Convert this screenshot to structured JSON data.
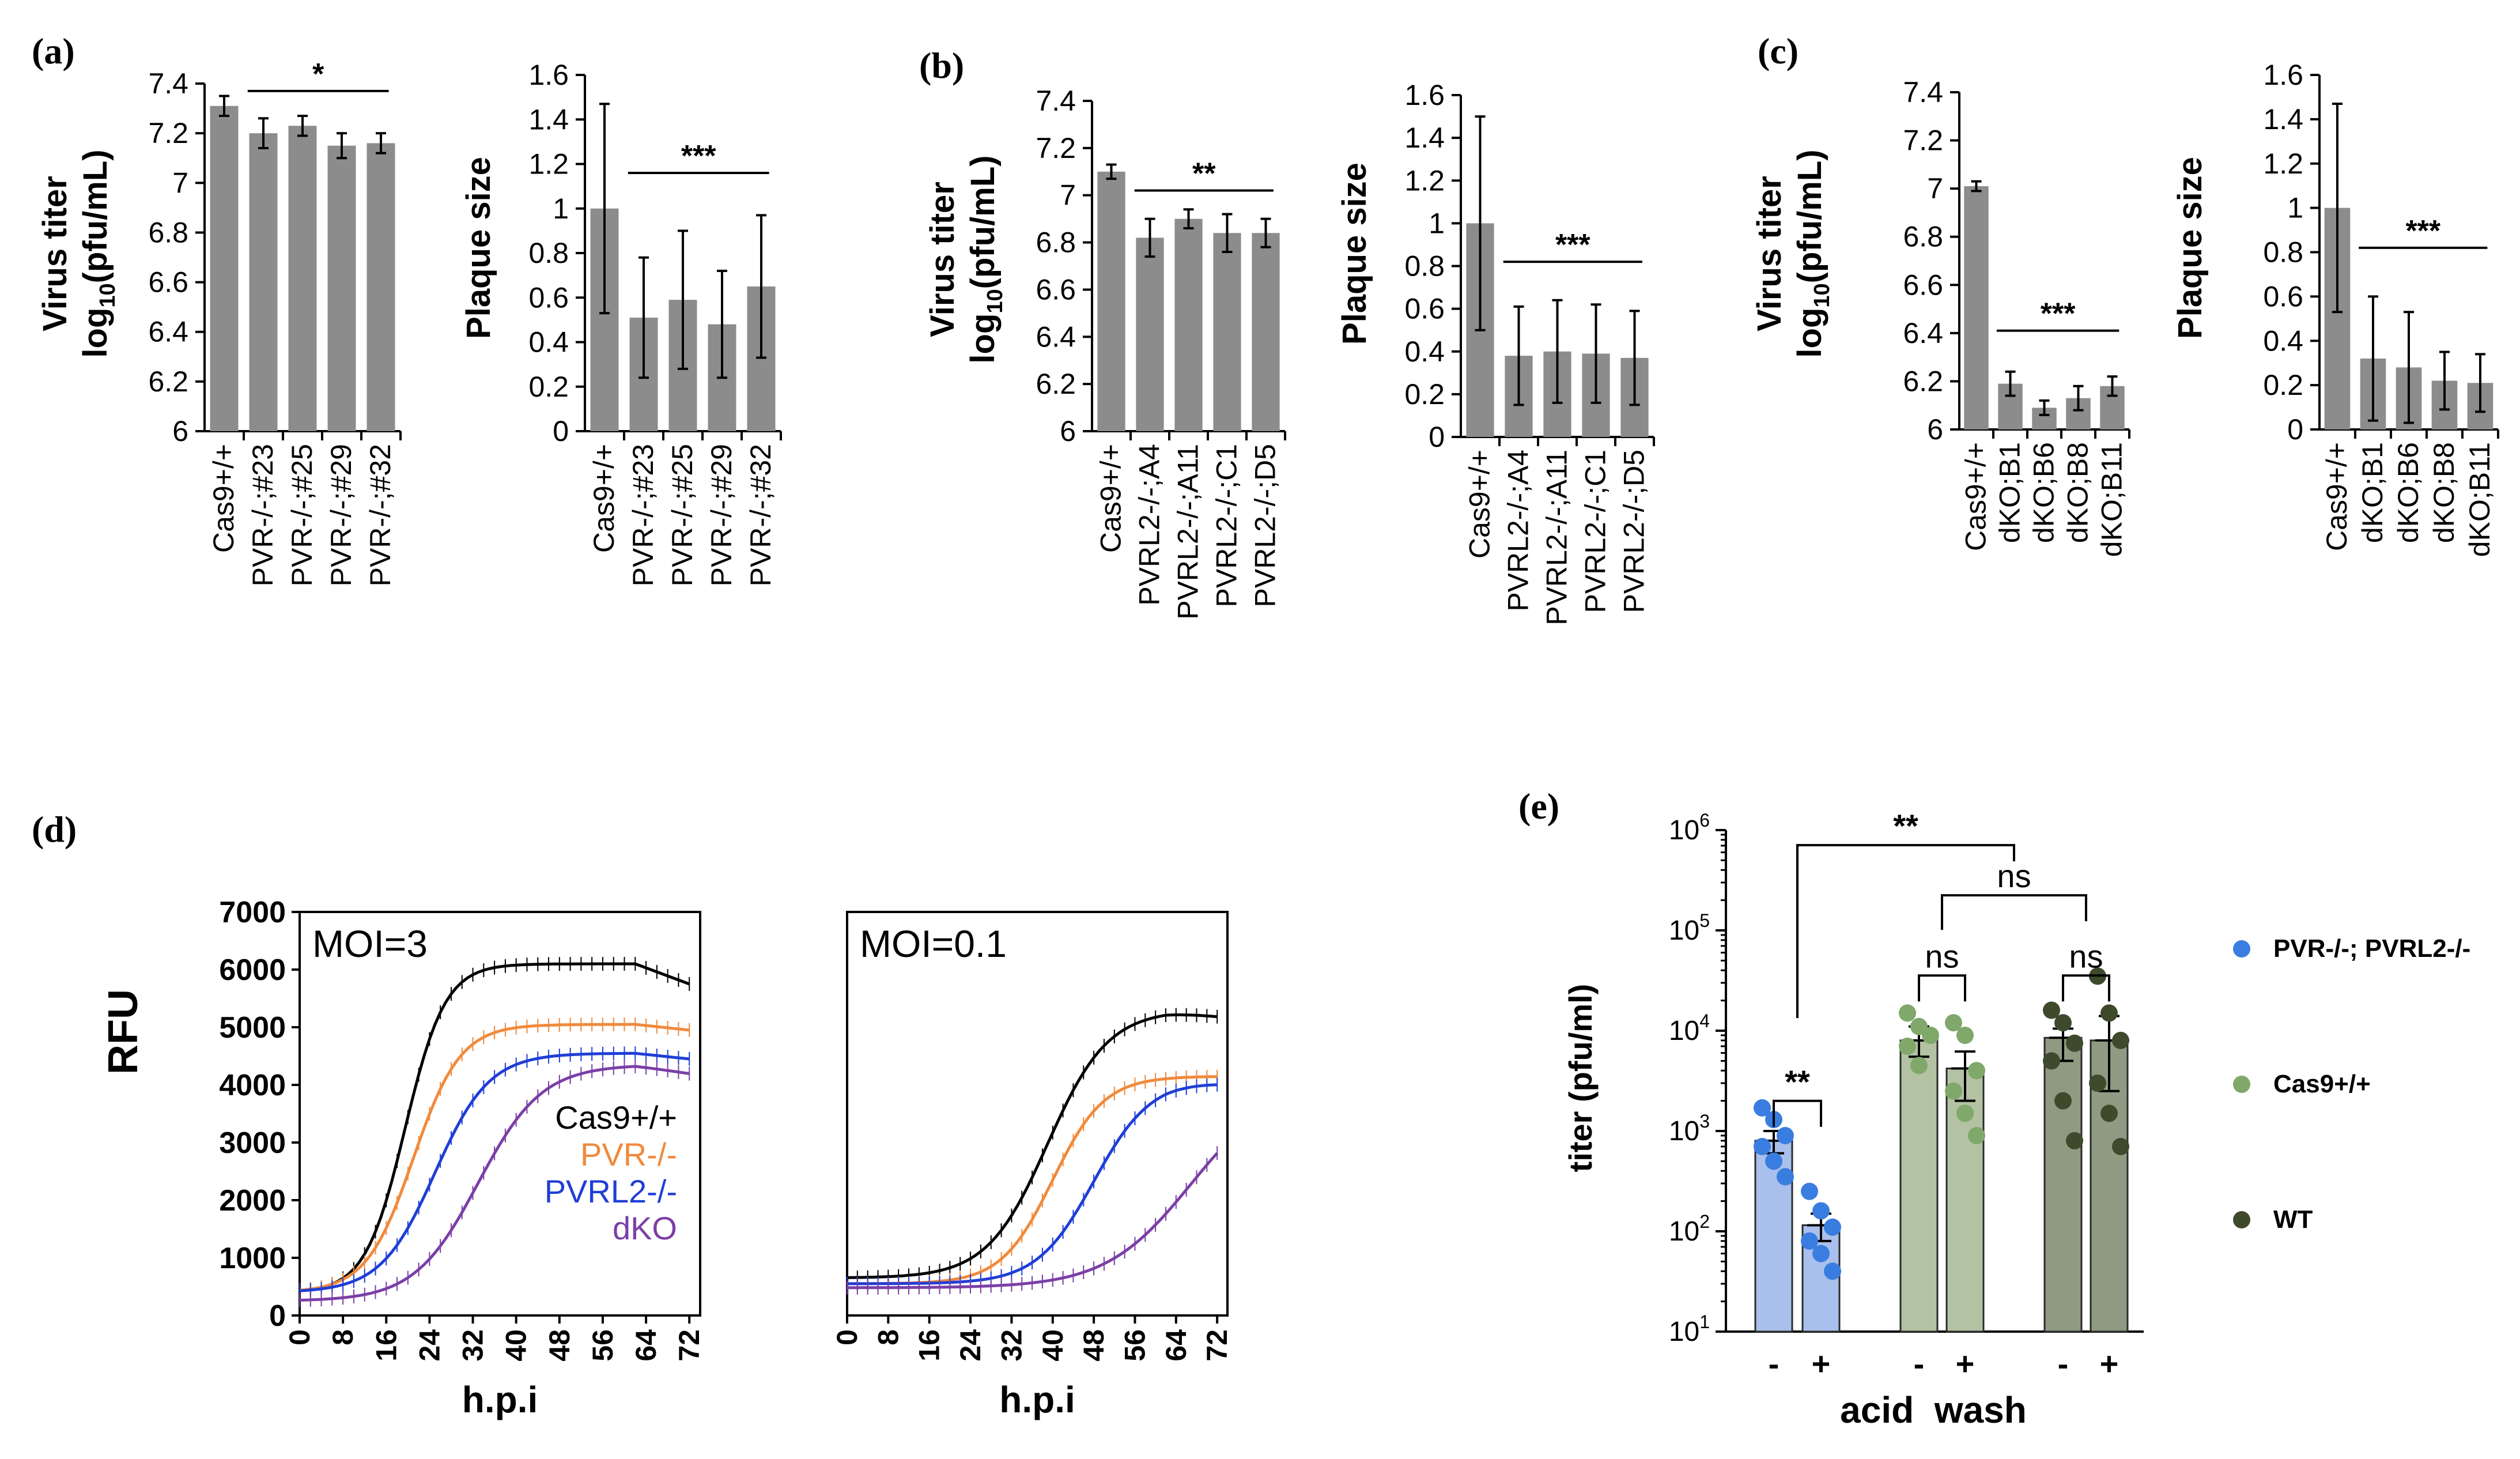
{
  "panel_labels": [
    "(a)",
    "(b)",
    "(c)",
    "(d)",
    "(e)"
  ],
  "chart_data": [
    {
      "id": "a-titer",
      "type": "bar",
      "panel": "(a)",
      "ylabel_line1": "Virus titer",
      "ylabel_line2_pre": "log",
      "ylabel_line2_sub": "10",
      "ylabel_line2_post": "(pfu/mL)",
      "categories": [
        "Cas9+/+",
        "PVR-/-;#23",
        "PVR-/-;#25",
        "PVR-/-;#29",
        "PVR-/-;#32"
      ],
      "values": [
        7.31,
        7.2,
        7.23,
        7.15,
        7.16
      ],
      "errors": [
        0.04,
        0.06,
        0.04,
        0.05,
        0.04
      ],
      "ylim": [
        6,
        7.4
      ],
      "yticks": [
        6,
        6.2,
        6.4,
        6.6,
        6.8,
        7,
        7.2,
        7.4
      ],
      "ytick_labels": [
        "6",
        "6.2",
        "6.4",
        "6.6",
        "6.8",
        "7",
        "7.2",
        "7.4"
      ],
      "significance": {
        "label": "*",
        "from": 1,
        "to": 4,
        "y": 7.37
      }
    },
    {
      "id": "a-plaque",
      "type": "bar",
      "panel": "(a)",
      "ylabel_line1": "Plaque size",
      "categories": [
        "Cas9+/+",
        "PVR-/-;#23",
        "PVR-/-;#25",
        "PVR-/-;#29",
        "PVR-/-;#32"
      ],
      "values": [
        1.0,
        0.51,
        0.59,
        0.48,
        0.65
      ],
      "errors": [
        0.47,
        0.27,
        0.31,
        0.24,
        0.32
      ],
      "ylim": [
        0,
        1.6
      ],
      "yticks": [
        0,
        0.2,
        0.4,
        0.6,
        0.8,
        1,
        1.2,
        1.4,
        1.6
      ],
      "ytick_labels": [
        "0",
        "0.2",
        "0.4",
        "0.6",
        "0.8",
        "1",
        "1.2",
        "1.4",
        "1.6"
      ],
      "significance": {
        "label": "***",
        "from": 1,
        "to": 4,
        "y": 1.16
      }
    },
    {
      "id": "b-titer",
      "type": "bar",
      "panel": "(b)",
      "ylabel_line1": "Virus titer",
      "ylabel_line2_pre": "log",
      "ylabel_line2_sub": "10",
      "ylabel_line2_post": "(pfu/mL)",
      "categories": [
        "Cas9+/+",
        "PVRL2-/-;A4",
        "PVRL2-/-;A11",
        "PVRL2-/-;C1",
        "PVRL2-/-;D5"
      ],
      "values": [
        7.1,
        6.82,
        6.9,
        6.84,
        6.84
      ],
      "errors": [
        0.03,
        0.08,
        0.04,
        0.08,
        0.06
      ],
      "ylim": [
        6,
        7.4
      ],
      "yticks": [
        6,
        6.2,
        6.4,
        6.6,
        6.8,
        7,
        7.2,
        7.4
      ],
      "ytick_labels": [
        "6",
        "6.2",
        "6.4",
        "6.6",
        "6.8",
        "7",
        "7.2",
        "7.4"
      ],
      "significance": {
        "label": "**",
        "from": 1,
        "to": 4,
        "y": 7.02
      }
    },
    {
      "id": "b-plaque",
      "type": "bar",
      "panel": "(b)",
      "ylabel_line1": "Plaque size",
      "categories": [
        "Cas9+/+",
        "PVRL2-/-;A4",
        "PVRL2-/-;A11",
        "PVRL2-/-;C1",
        "PVRL2-/-;D5"
      ],
      "values": [
        1.0,
        0.38,
        0.4,
        0.39,
        0.37
      ],
      "errors": [
        0.5,
        0.23,
        0.24,
        0.23,
        0.22
      ],
      "ylim": [
        0,
        1.6
      ],
      "yticks": [
        0,
        0.2,
        0.4,
        0.6,
        0.8,
        1,
        1.2,
        1.4,
        1.6
      ],
      "ytick_labels": [
        "0",
        "0.2",
        "0.4",
        "0.6",
        "0.8",
        "1",
        "1.2",
        "1.4",
        "1.6"
      ],
      "significance": {
        "label": "***",
        "from": 1,
        "to": 4,
        "y": 0.82
      }
    },
    {
      "id": "c-titer",
      "type": "bar",
      "panel": "(c)",
      "ylabel_line1": "Virus titer",
      "ylabel_line2_pre": "log",
      "ylabel_line2_sub": "10",
      "ylabel_line2_post": "(pfu/mL)",
      "categories": [
        "Cas9+/+",
        "dKO;B1",
        "dKO;B6",
        "dKO;B8",
        "dKO;B11"
      ],
      "values": [
        7.01,
        6.19,
        6.09,
        6.13,
        6.18
      ],
      "errors": [
        0.02,
        0.05,
        0.03,
        0.05,
        0.04
      ],
      "ylim": [
        6,
        7.4
      ],
      "yticks": [
        6,
        6.2,
        6.4,
        6.6,
        6.8,
        7,
        7.2,
        7.4
      ],
      "ytick_labels": [
        "6",
        "6.2",
        "6.4",
        "6.6",
        "6.8",
        "7",
        "7.2",
        "7.4"
      ],
      "significance": {
        "label": "***",
        "from": 1,
        "to": 4,
        "y": 6.41
      }
    },
    {
      "id": "c-plaque",
      "type": "bar",
      "panel": "(c)",
      "ylabel_line1": "Plaque size",
      "categories": [
        "Cas9+/+",
        "dKO;B1",
        "dKO;B6",
        "dKO;B8",
        "dKO;B11"
      ],
      "values": [
        1.0,
        0.32,
        0.28,
        0.22,
        0.21
      ],
      "errors": [
        0.47,
        0.28,
        0.25,
        0.13,
        0.13
      ],
      "ylim": [
        0,
        1.6
      ],
      "yticks": [
        0,
        0.2,
        0.4,
        0.6,
        0.8,
        1,
        1.2,
        1.4,
        1.6
      ],
      "ytick_labels": [
        "0",
        "0.2",
        "0.4",
        "0.6",
        "0.8",
        "1",
        "1.2",
        "1.4",
        "1.6"
      ],
      "significance": {
        "label": "***",
        "from": 1,
        "to": 4,
        "y": 0.82
      }
    },
    {
      "id": "d-moi3",
      "type": "line",
      "panel": "(d)",
      "annotation": "MOI=3",
      "ylabel": "RFU",
      "xlabel": "h.p.i",
      "xlim": [
        0,
        74
      ],
      "ylim": [
        0,
        7000
      ],
      "xticks": [
        0,
        8,
        16,
        24,
        32,
        40,
        48,
        56,
        64,
        72
      ],
      "xtick_labels": [
        "0",
        "8",
        "16",
        "24",
        "32",
        "40",
        "48",
        "56",
        "64",
        "72"
      ],
      "yticks": [
        0,
        1000,
        2000,
        3000,
        4000,
        5000,
        6000,
        7000
      ],
      "ytick_labels": [
        "0",
        "1000",
        "2000",
        "3000",
        "4000",
        "5000",
        "6000",
        "7000"
      ],
      "series": [
        {
          "name": "Cas9+/+",
          "color": "#000000",
          "base": 400,
          "max": 6100,
          "mid": 19.5,
          "k": 0.27,
          "end_drop": 350
        },
        {
          "name": "PVR-/-",
          "color": "#f08a3c",
          "base": 400,
          "max": 5050,
          "mid": 21,
          "k": 0.23,
          "end_drop": 100
        },
        {
          "name": "PVRL2-/-",
          "color": "#1f3ed6",
          "base": 400,
          "max": 4550,
          "mid": 25,
          "k": 0.2,
          "end_drop": 100
        },
        {
          "name": "dKO",
          "color": "#7b3fa6",
          "base": 250,
          "max": 4350,
          "mid": 33,
          "k": 0.17,
          "end_drop": 150
        }
      ],
      "legend": [
        {
          "label": "Cas9+/+",
          "color": "#000000"
        },
        {
          "label": "PVR-/-",
          "color": "#f08a3c"
        },
        {
          "label": "PVRL2-/-",
          "color": "#1f3ed6"
        },
        {
          "label": "dKO",
          "color": "#7b3fa6"
        }
      ]
    },
    {
      "id": "d-moi01",
      "type": "line",
      "panel": "(d)",
      "annotation": "MOI=0.1",
      "xlabel": "h.p.i",
      "xlim": [
        0,
        74
      ],
      "ylim": [
        0,
        7000
      ],
      "xticks": [
        0,
        8,
        16,
        24,
        32,
        40,
        48,
        56,
        64,
        72
      ],
      "xtick_labels": [
        "0",
        "8",
        "16",
        "24",
        "32",
        "40",
        "48",
        "56",
        "64",
        "72"
      ],
      "series": [
        {
          "name": "Cas9+/+",
          "color": "#000000",
          "base": 650,
          "max": 5300,
          "mid": 39,
          "k": 0.17,
          "end_drop": 100
        },
        {
          "name": "PVR-/-",
          "color": "#f08a3c",
          "base": 550,
          "max": 4150,
          "mid": 40,
          "k": 0.2,
          "end_drop": 0
        },
        {
          "name": "PVRL2-/-",
          "color": "#1f3ed6",
          "base": 550,
          "max": 4100,
          "mid": 48,
          "k": 0.18,
          "end_drop": 50
        },
        {
          "name": "dKO",
          "color": "#7b3fa6",
          "base": 480,
          "max": 4100,
          "mid": 67,
          "k": 0.12,
          "end_drop": 0
        }
      ]
    },
    {
      "id": "e-titer",
      "type": "bar",
      "panel": "(e)",
      "ylabel": "titer (pfu/ml)",
      "xlabel": "acid  wash",
      "yscale": "log",
      "ylim_exp": [
        1,
        6
      ],
      "ytick_base": "10",
      "ytick_exponents": [
        "1",
        "2",
        "3",
        "4",
        "5",
        "6"
      ],
      "categories": [
        "-",
        "+",
        "-",
        "+",
        "-",
        "+"
      ],
      "groups": [
        "PVR-/-; PVRL2-/-",
        "PVR-/-; PVRL2-/-",
        "Cas9+/+",
        "Cas9+/+",
        "WT",
        "WT"
      ],
      "values": [
        800,
        115,
        8000,
        4200,
        8500,
        8000
      ],
      "errors_low": [
        200,
        35,
        2500,
        2200,
        3500,
        5500
      ],
      "errors_high": [
        200,
        35,
        3000,
        2000,
        2000,
        6000
      ],
      "points": [
        [
          1700,
          1300,
          900,
          700,
          500,
          350
        ],
        [
          250,
          160,
          110,
          80,
          60,
          40
        ],
        [
          15000,
          11000,
          9000,
          7000,
          4500
        ],
        [
          12000,
          9000,
          4000,
          2500,
          1500,
          900
        ],
        [
          16000,
          12000,
          7500,
          5000,
          2000,
          800
        ],
        [
          35000,
          15000,
          8000,
          3000,
          1500,
          700
        ]
      ],
      "bar_colors": [
        "#a9c0ec",
        "#a9c0ec",
        "#b3c2a3",
        "#b3c2a3",
        "#8f9a82",
        "#8f9a82"
      ],
      "point_colors": [
        "#3a7de0",
        "#3a7de0",
        "#7fa86a",
        "#7fa86a",
        "#3f4a2c",
        "#3f4a2c"
      ],
      "comparisons": [
        {
          "label": "**",
          "from": 0,
          "to": 1,
          "yexp": 3.3
        },
        {
          "label": "ns",
          "from": 2,
          "to": 3,
          "yexp": 4.55
        },
        {
          "label": "ns",
          "from": 4,
          "to": 5,
          "yexp": 4.55
        },
        {
          "label": "ns",
          "from": 2.5,
          "to": 4.5,
          "yexp": 5.35
        },
        {
          "label": "**",
          "from": 0.5,
          "to": 3.5,
          "yexp": 5.85
        }
      ],
      "legend": [
        {
          "label": "PVR-/-; PVRL2-/-",
          "color": "#3a7de0"
        },
        {
          "label": "Cas9+/+",
          "color": "#7fa86a"
        },
        {
          "label": "WT",
          "color": "#3f4a2c"
        }
      ]
    }
  ]
}
